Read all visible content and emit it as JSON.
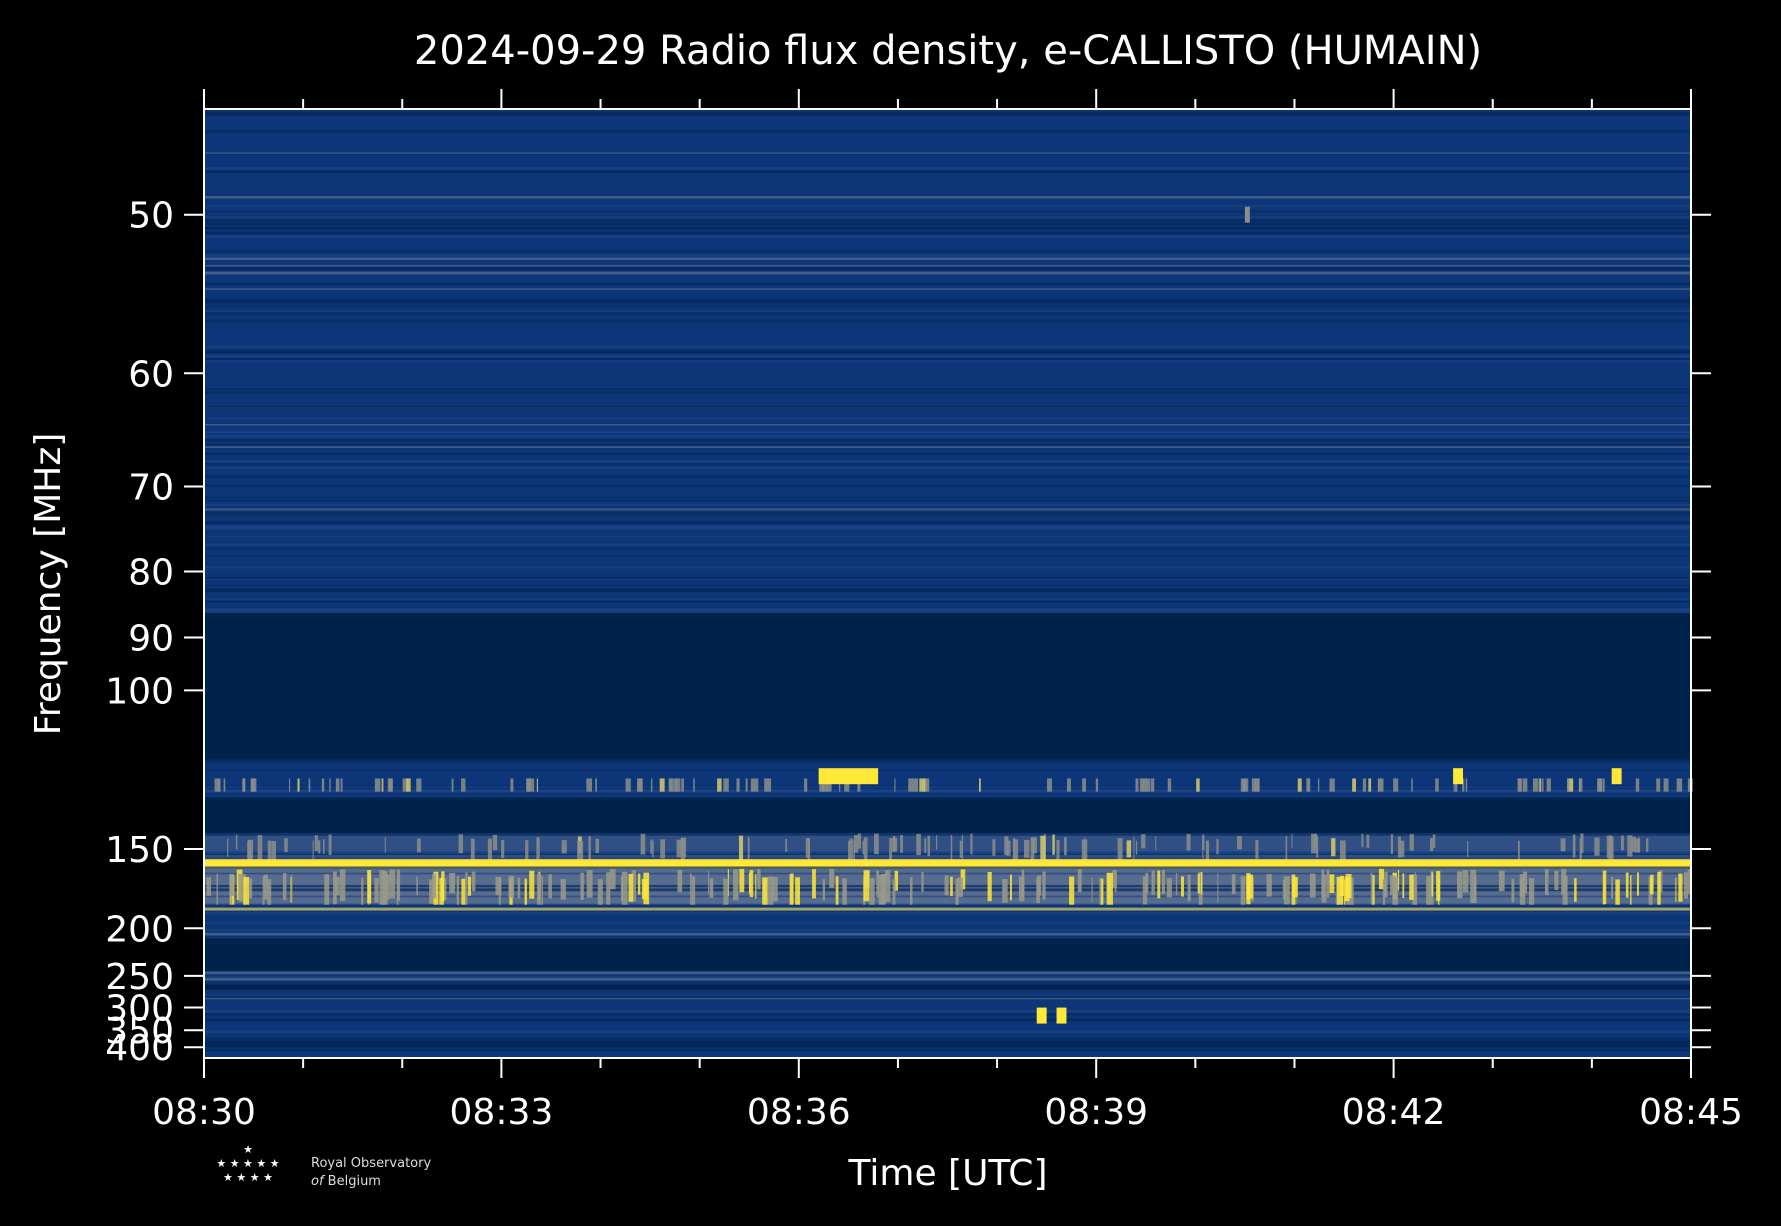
{
  "chart_data": {
    "type": "heatmap",
    "title": "2024-09-29 Radio flux density, e-CALLISTO (HUMAIN)",
    "xlabel": "Time [UTC]",
    "ylabel": "Frequency [MHz]",
    "x_ticks": [
      "08:30",
      "08:33",
      "08:36",
      "08:39",
      "08:42",
      "08:45"
    ],
    "x_range_minutes": [
      0,
      15
    ],
    "y_ticks": [
      50,
      60,
      70,
      80,
      90,
      100,
      150,
      200,
      250,
      300,
      350,
      400
    ],
    "y_range": [
      45,
      440
    ],
    "y_scale": "reciprocal",
    "colormap": "cividis",
    "bands": [
      {
        "f_from": 45,
        "f_to": 86,
        "level": "noise"
      },
      {
        "f_from": 86,
        "f_to": 117,
        "level": "empty"
      },
      {
        "f_from": 117,
        "f_to": 129,
        "level": "bursty-moderate"
      },
      {
        "f_from": 129,
        "f_to": 143,
        "level": "empty"
      },
      {
        "f_from": 143,
        "f_to": 155,
        "level": "noise-bright"
      },
      {
        "f_from": 155,
        "f_to": 160,
        "level": "saturated"
      },
      {
        "f_from": 160,
        "f_to": 182,
        "level": "bursty-strong"
      },
      {
        "f_from": 182,
        "f_to": 209,
        "level": "noise"
      },
      {
        "f_from": 209,
        "f_to": 244,
        "level": "empty"
      },
      {
        "f_from": 244,
        "f_to": 262,
        "level": "noise-faint"
      },
      {
        "f_from": 262,
        "f_to": 270,
        "level": "empty"
      },
      {
        "f_from": 270,
        "f_to": 380,
        "level": "noise"
      },
      {
        "f_from": 380,
        "f_to": 402,
        "level": "empty-faint"
      },
      {
        "f_from": 402,
        "f_to": 440,
        "level": "noise"
      }
    ],
    "bright_features": [
      {
        "t_from": 6.2,
        "t_to": 6.8,
        "f": 122,
        "level": "strong"
      },
      {
        "t_from": 12.6,
        "t_to": 12.7,
        "f": 122,
        "level": "strong"
      },
      {
        "t_from": 14.2,
        "t_to": 14.3,
        "f": 122,
        "level": "strong"
      },
      {
        "t_from": 8.4,
        "t_to": 8.5,
        "f": 316,
        "level": "strong"
      },
      {
        "t_from": 8.6,
        "t_to": 8.7,
        "f": 316,
        "level": "strong"
      },
      {
        "t_from": 10.5,
        "t_to": 10.55,
        "f": 50,
        "level": "moderate"
      }
    ]
  },
  "logo": {
    "line1": "Royal Observatory",
    "line2_italic": "of",
    "line2": "Belgium"
  },
  "colors": {
    "background": "#000000",
    "empty": "#00234c",
    "noise": "#0c3677",
    "noise_bright": "#2f4f85",
    "moderate": "#8b8e8a",
    "strong": "#fee838",
    "saturated": "#fde23a"
  }
}
